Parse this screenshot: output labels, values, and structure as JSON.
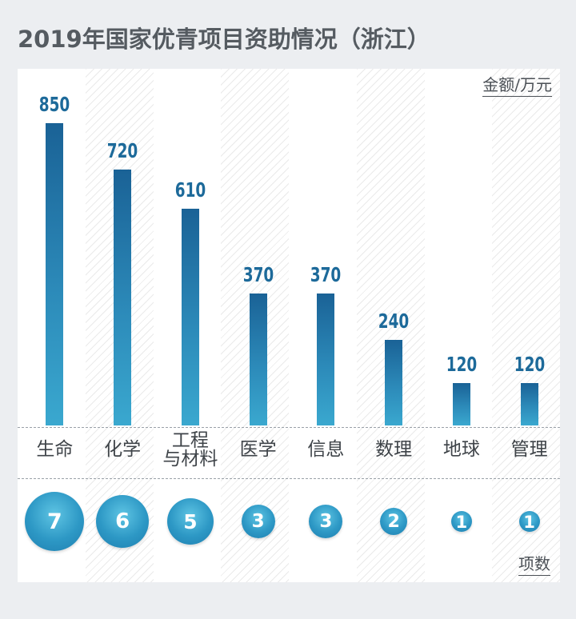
{
  "title": "2019年国家优青项目资助情况（浙江）",
  "unit_label": "金额/万元",
  "count_label": "项数",
  "chart_data": {
    "type": "bar",
    "title": "2019年国家优青项目资助情况（浙江）",
    "ylabel": "金额/万元",
    "categories": [
      "生命",
      "化学",
      "工程\n与材料",
      "医学",
      "信息",
      "数理",
      "地球",
      "管理"
    ],
    "values": [
      850,
      720,
      610,
      370,
      370,
      240,
      120,
      120
    ],
    "value_labels": [
      "850",
      "720",
      "610",
      "370",
      "370",
      "240",
      "120",
      "120"
    ],
    "counts_label": "项数",
    "counts": [
      7,
      6,
      5,
      3,
      3,
      2,
      1,
      1
    ],
    "count_labels": [
      "7",
      "6",
      "5",
      "3",
      "3",
      "2",
      "1",
      "1"
    ],
    "bar_color": "#1f76a8",
    "bubble_color": "#2d98c5"
  }
}
